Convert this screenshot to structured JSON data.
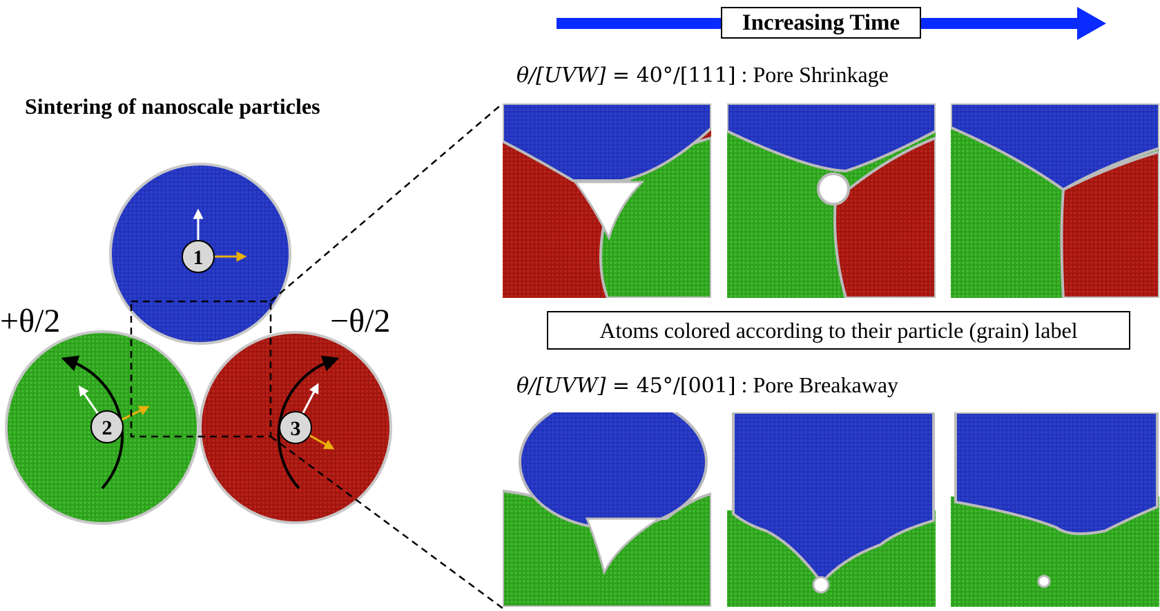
{
  "timeline": {
    "label": "Increasing Time",
    "arrow_color": "#0a2bff"
  },
  "left_title": "Sintering of nanoscale particles",
  "particles": [
    {
      "id": "1",
      "color": "#2233bb"
    },
    {
      "id": "2",
      "color": "#33aa22"
    },
    {
      "id": "3",
      "color": "#aa1a14"
    }
  ],
  "rotation_labels": {
    "left": "+θ/2",
    "right": "−θ/2"
  },
  "row1": {
    "math": "θ/[UVW]",
    "eq": " = 40°/[111]",
    "suffix": " : Pore Shrinkage"
  },
  "row2": {
    "math": "θ/[UVW]",
    "eq": " = 45°/[001]",
    "suffix": " : Pore Breakaway"
  },
  "legend": "Atoms colored according to their particle (grain) label",
  "colors": {
    "blue": "#2233bb",
    "green": "#33aa22",
    "red": "#aa1a14",
    "boundary": "#bdbdbd",
    "arrow_yellow": "#e8b00c"
  }
}
